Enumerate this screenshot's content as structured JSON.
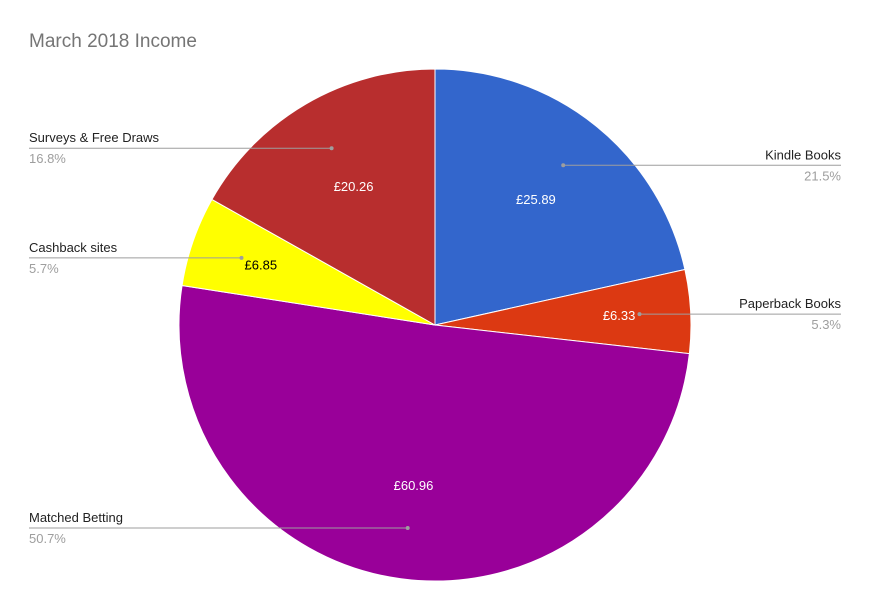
{
  "chart_data": {
    "type": "pie",
    "title": "March 2018 Income",
    "slices": [
      {
        "name": "Kindle Books",
        "value": 25.89,
        "value_label": "£25.89",
        "percent_label": "21.5%",
        "color": "#3366cc",
        "label_color": "#ffffff"
      },
      {
        "name": "Paperback Books",
        "value": 6.33,
        "value_label": "£6.33",
        "percent_label": "5.3%",
        "color": "#dc3912",
        "label_color": "#ffffff"
      },
      {
        "name": "Matched Betting",
        "value": 60.96,
        "value_label": "£60.96",
        "percent_label": "50.7%",
        "color": "#990099",
        "label_color": "#ffffff"
      },
      {
        "name": "Cashback sites",
        "value": 6.85,
        "value_label": "£6.85",
        "percent_label": "5.7%",
        "color": "#ffff00",
        "label_color": "#000000"
      },
      {
        "name": "Surveys & Free Draws",
        "value": 20.26,
        "value_label": "£20.26",
        "percent_label": "16.8%",
        "color": "#b82e2e",
        "label_color": "#ffffff"
      }
    ],
    "start_angle": "12 o'clock",
    "direction": "clockwise",
    "legend": "labeled leader lines"
  }
}
